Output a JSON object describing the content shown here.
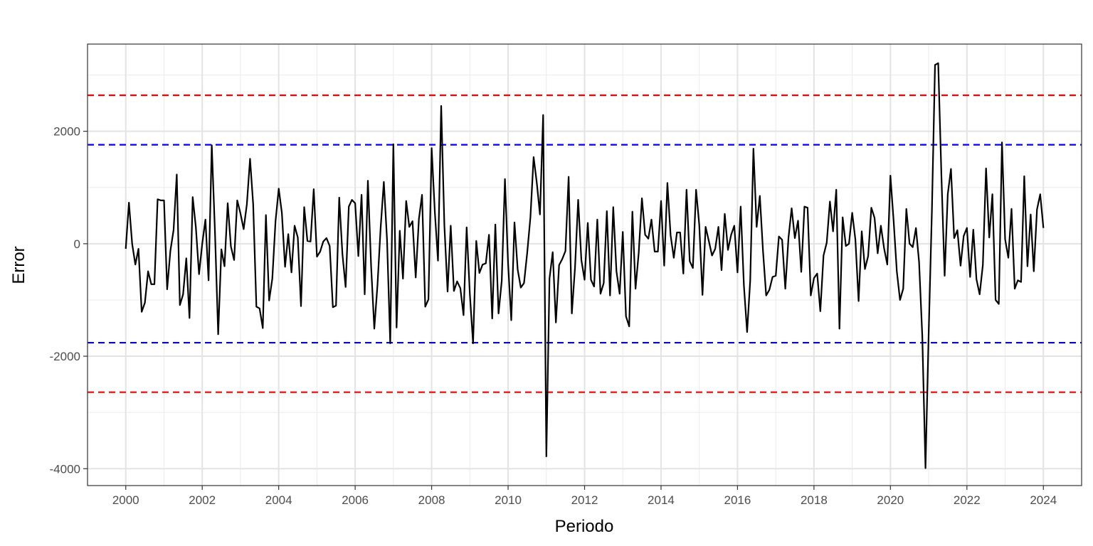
{
  "chart_data": {
    "type": "line",
    "title": "",
    "xlabel": "Periodo",
    "ylabel": "Error",
    "xlim": [
      1999.0,
      2025.0
    ],
    "ylim": [
      -4300,
      3550
    ],
    "x_ticks": [
      2000,
      2002,
      2004,
      2006,
      2008,
      2010,
      2012,
      2014,
      2016,
      2018,
      2020,
      2022,
      2024
    ],
    "x_tick_labels": [
      "2000",
      "2002",
      "2004",
      "2006",
      "2008",
      "2010",
      "2012",
      "2014",
      "2016",
      "2018",
      "2020",
      "2022",
      "2024"
    ],
    "y_ticks": [
      -4000,
      -2000,
      0,
      2000
    ],
    "y_tick_labels": [
      "-4000",
      "-2000",
      "0",
      "2000"
    ],
    "grid": true,
    "reference_lines": [
      {
        "name": "upper-3sigma",
        "y": 2640,
        "color": "#ff0000",
        "style": "dashed"
      },
      {
        "name": "upper-2sigma",
        "y": 1760,
        "color": "#0000ff",
        "style": "dashed"
      },
      {
        "name": "lower-2sigma",
        "y": -1760,
        "color": "#0000ff",
        "style": "dashed"
      },
      {
        "name": "lower-3sigma",
        "y": -2640,
        "color": "#ff0000",
        "style": "dashed"
      }
    ],
    "series": [
      {
        "name": "Error",
        "color": "#000000",
        "start": 2000.0,
        "step": 0.0833333,
        "values": [
          -90,
          730,
          0,
          -370,
          -90,
          -1210,
          -1050,
          -490,
          -720,
          -720,
          790,
          770,
          770,
          -810,
          -130,
          240,
          1230,
          -1090,
          -900,
          -260,
          -1320,
          830,
          300,
          -540,
          0,
          430,
          -650,
          1750,
          210,
          -1610,
          -100,
          -400,
          720,
          -50,
          -290,
          770,
          540,
          260,
          700,
          1510,
          700,
          -1120,
          -1150,
          -1500,
          510,
          -1010,
          -620,
          400,
          980,
          550,
          -410,
          170,
          -510,
          320,
          110,
          -1110,
          650,
          50,
          40,
          970,
          -230,
          -140,
          40,
          100,
          -40,
          -1130,
          -1100,
          820,
          -180,
          -770,
          660,
          780,
          720,
          -220,
          870,
          -900,
          1120,
          -390,
          -1510,
          -730,
          280,
          1100,
          70,
          -1770,
          1770,
          -1490,
          230,
          -620,
          760,
          300,
          400,
          -600,
          440,
          870,
          -1120,
          -990,
          1700,
          560,
          -300,
          2450,
          320,
          -850,
          320,
          -840,
          -670,
          -790,
          -1270,
          290,
          -900,
          -1770,
          50,
          -520,
          -370,
          -350,
          160,
          -1330,
          340,
          -1240,
          -660,
          1150,
          -350,
          -1360,
          380,
          -460,
          -780,
          -700,
          -160,
          470,
          1540,
          1090,
          520,
          2290,
          -3780,
          -620,
          -150,
          -1400,
          -380,
          -270,
          -130,
          1190,
          -1240,
          -420,
          780,
          -290,
          -640,
          370,
          -640,
          -760,
          430,
          -890,
          -700,
          580,
          -920,
          650,
          -490,
          -890,
          210,
          -1290,
          -1470,
          570,
          -800,
          -160,
          810,
          160,
          90,
          430,
          -140,
          -140,
          760,
          -390,
          1080,
          150,
          -250,
          200,
          200,
          -530,
          960,
          -310,
          -430,
          960,
          330,
          -910,
          300,
          50,
          -210,
          -90,
          300,
          -470,
          530,
          -110,
          160,
          320,
          -510,
          660,
          -740,
          -1570,
          -650,
          1690,
          300,
          850,
          -120,
          -920,
          -820,
          -590,
          -570,
          130,
          70,
          -800,
          110,
          630,
          100,
          410,
          -500,
          660,
          640,
          -920,
          -610,
          -530,
          -1200,
          -210,
          20,
          750,
          220,
          960,
          -1510,
          470,
          -40,
          0,
          550,
          70,
          -1020,
          220,
          -450,
          -220,
          640,
          460,
          -170,
          320,
          -80,
          -370,
          1210,
          410,
          -490,
          -1000,
          -800,
          620,
          0,
          -60,
          280,
          -330,
          -1640,
          -3990,
          -1580,
          580,
          3180,
          3210,
          1200,
          -570,
          880,
          1330,
          100,
          240,
          -390,
          140,
          280,
          -590,
          250,
          -630,
          -900,
          -380,
          1340,
          110,
          880,
          -1000,
          -1070,
          1800,
          80,
          -250,
          620,
          -800,
          -650,
          -680,
          1200,
          -400,
          520,
          -490,
          610,
          880,
          280
        ]
      }
    ]
  }
}
